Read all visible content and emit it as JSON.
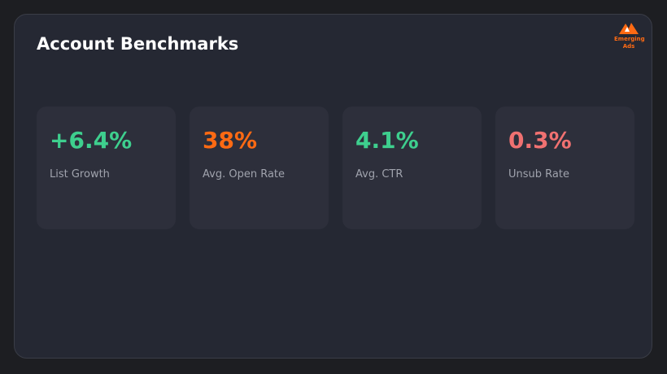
{
  "header": {
    "title": "Account Benchmarks",
    "logo": {
      "lines": [
        "Emerging",
        "Ads"
      ]
    }
  },
  "cards": [
    {
      "value": "+6.4%",
      "label": "List Growth",
      "color": "#3ecf8e"
    },
    {
      "value": "38%",
      "label": "Avg. Open Rate",
      "color": "#ff6a13"
    },
    {
      "value": "4.1%",
      "label": "Avg. CTR",
      "color": "#3ecf8e"
    },
    {
      "value": "0.3%",
      "label": "Unsub Rate",
      "color": "#f07171"
    }
  ]
}
